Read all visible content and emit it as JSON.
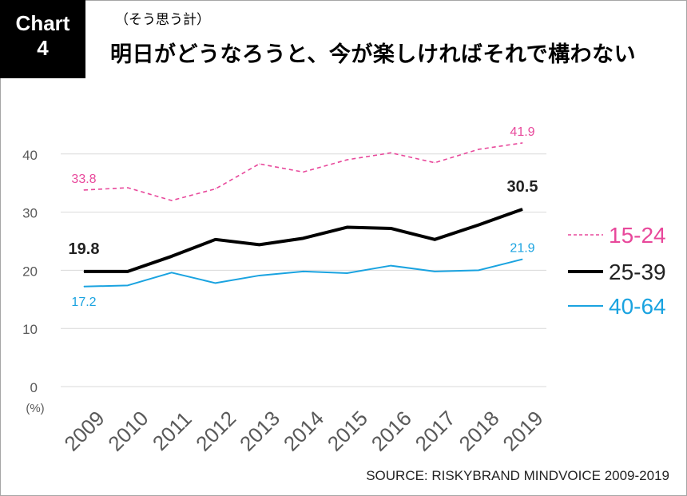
{
  "badge": {
    "line1": "Chart",
    "line2": "4"
  },
  "subtitle": "（そう思う計）",
  "title": "明日がどうなろうと、今が楽しければそれで構わない",
  "source": "SOURCE: RISKYBRAND MINDVOICE 2009-2019",
  "colors": {
    "15-24": "#e8489b",
    "25-39": "#000000",
    "40-64": "#1aa3e0",
    "grid": "#d9d9d9",
    "axis_text": "#595959"
  },
  "chart_data": {
    "type": "line",
    "x": [
      "2009",
      "2010",
      "2011",
      "2012",
      "2013",
      "2014",
      "2015",
      "2016",
      "2017",
      "2018",
      "2019"
    ],
    "ylim": [
      0,
      40
    ],
    "yticks": [
      0,
      10,
      20,
      30,
      40
    ],
    "ylabel": "(%)",
    "grid": true,
    "legend_position": "right",
    "series": [
      {
        "name": "15-24",
        "style": "dashed",
        "values": [
          33.8,
          34.2,
          32.0,
          34.0,
          38.3,
          36.9,
          39.0,
          40.2,
          38.5,
          40.8,
          41.9
        ]
      },
      {
        "name": "25-39",
        "style": "thick",
        "values": [
          19.8,
          19.8,
          22.4,
          25.3,
          24.4,
          25.5,
          27.4,
          27.2,
          25.3,
          27.8,
          30.5
        ]
      },
      {
        "name": "40-64",
        "style": "solid",
        "values": [
          17.2,
          17.4,
          19.6,
          17.8,
          19.1,
          19.8,
          19.5,
          20.8,
          19.8,
          20.0,
          21.9
        ]
      }
    ],
    "annotations": [
      {
        "series": "15-24",
        "index": 0,
        "text": "33.8"
      },
      {
        "series": "15-24",
        "index": 10,
        "text": "41.9"
      },
      {
        "series": "25-39",
        "index": 0,
        "text": "19.8"
      },
      {
        "series": "25-39",
        "index": 10,
        "text": "30.5"
      },
      {
        "series": "40-64",
        "index": 0,
        "text": "17.2"
      },
      {
        "series": "40-64",
        "index": 10,
        "text": "21.9"
      }
    ]
  }
}
